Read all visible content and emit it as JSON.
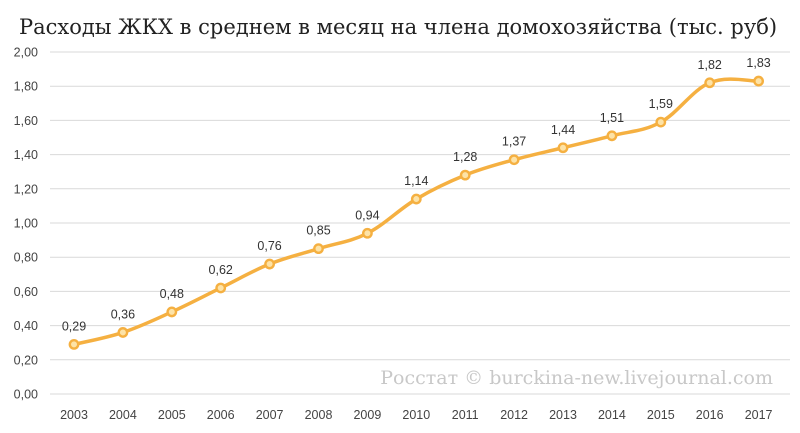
{
  "chart_data": {
    "type": "line",
    "title": "Расходы ЖКХ в среднем в месяц на члена домохозяйства  (тыс. руб)",
    "xlabel": "",
    "ylabel": "",
    "categories": [
      "2003",
      "2004",
      "2005",
      "2006",
      "2007",
      "2008",
      "2009",
      "2010",
      "2011",
      "2012",
      "2013",
      "2014",
      "2015",
      "2016",
      "2017"
    ],
    "values": [
      0.29,
      0.36,
      0.48,
      0.62,
      0.76,
      0.85,
      0.94,
      1.14,
      1.28,
      1.37,
      1.44,
      1.51,
      1.59,
      1.82,
      1.83
    ],
    "data_labels": [
      "0,29",
      "0,36",
      "0,48",
      "0,62",
      "0,76",
      "0,85",
      "0,94",
      "1,14",
      "1,28",
      "1,37",
      "1,44",
      "1,51",
      "1,59",
      "1,82",
      "1,83"
    ],
    "ylim": [
      0,
      2
    ],
    "yticks": [
      "0,00",
      "0,20",
      "0,40",
      "0,60",
      "0,80",
      "1,00",
      "1,20",
      "1,40",
      "1,60",
      "1,80",
      "2,00"
    ],
    "grid": true,
    "smooth": true,
    "line_color": "#f5b041",
    "marker_fill": "#fde3a7",
    "watermark": "Росстат © burckina-new.livejournal.com"
  }
}
